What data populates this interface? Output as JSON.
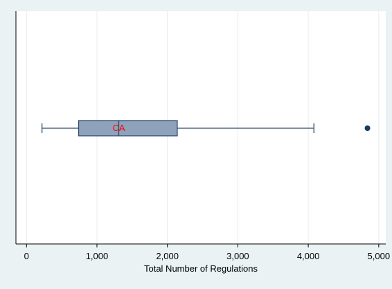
{
  "chart_data": {
    "type": "boxplot",
    "orientation": "horizontal",
    "xlabel": "Total Number of Regulations",
    "xlim": [
      -150,
      5100
    ],
    "xticks": [
      0,
      1000,
      2000,
      3000,
      4000,
      5000
    ],
    "xtick_labels": [
      "0",
      "1,000",
      "2,000",
      "3,000",
      "4,000",
      "5,000"
    ],
    "grid": true,
    "box": {
      "whisker_low": 220,
      "q1": 740,
      "median": 1310,
      "q3": 2140,
      "whisker_high": 4080,
      "outliers": [
        4840
      ]
    },
    "annotations": [
      {
        "text": "CA",
        "x": 1310,
        "color": "#ff0000"
      }
    ],
    "colors": {
      "plot_background": "#ffffff",
      "outer_background": "#eaf2f3",
      "box_fill": "#8ea3bb",
      "box_stroke": "#2c4a6e",
      "outlier": "#1a3a63",
      "grid": "#e6ecee"
    }
  }
}
